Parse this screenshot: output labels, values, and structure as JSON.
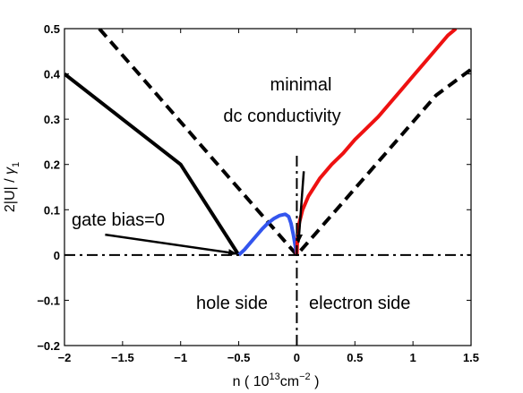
{
  "chart_data": {
    "type": "line",
    "xlabel": {
      "prefix": "n  ( 10",
      "exp": "13",
      "mid": "cm",
      "exp2": "−2",
      "suffix": " )"
    },
    "ylabel": {
      "main": "2|U| / ",
      "sym": "γ",
      "sub": "1"
    },
    "xlim": [
      -2,
      1.5
    ],
    "ylim": [
      -0.2,
      0.5
    ],
    "xticks": [
      -2,
      -1.5,
      -1,
      -0.5,
      0,
      0.5,
      1,
      1.5
    ],
    "xtick_labels": [
      "−2",
      "−1.5",
      "−1",
      "−0.5",
      "0",
      "0.5",
      "1",
      "1.5"
    ],
    "yticks": [
      -0.2,
      -0.1,
      0,
      0.1,
      0.2,
      0.3,
      0.4,
      0.5
    ],
    "ytick_labels": [
      "−0.2",
      "−0.1",
      "0",
      "0.1",
      "0.2",
      "0.3",
      "0.4",
      "0.5"
    ],
    "grid": false,
    "series": [
      {
        "color": "#000000",
        "style": "dashed",
        "x": [
          -1.7,
          -1.2,
          -0.6,
          0,
          0.6,
          1.2,
          1.5
        ],
        "y": [
          0.5,
          0.353,
          0.176,
          0,
          0.176,
          0.353,
          0.41
        ]
      },
      {
        "color": "#000000",
        "style": "solid",
        "x": [
          -2,
          -1.5,
          -1,
          -0.5
        ],
        "y": [
          0.4,
          0.3,
          0.2,
          0
        ]
      },
      {
        "color": "#3355ee",
        "style": "solid",
        "x": [
          -0.5,
          -0.45,
          -0.4,
          -0.35,
          -0.3,
          -0.25,
          -0.2,
          -0.15,
          -0.1,
          -0.07,
          -0.05,
          -0.03,
          -0.01,
          0
        ],
        "y": [
          0,
          0.012,
          0.027,
          0.042,
          0.057,
          0.07,
          0.08,
          0.087,
          0.09,
          0.085,
          0.07,
          0.045,
          0.015,
          0
        ]
      },
      {
        "color": "#ee1111",
        "style": "solid",
        "x": [
          0,
          0.005,
          0.02,
          0.05,
          0.1,
          0.2,
          0.3,
          0.4,
          0.5,
          0.6,
          0.7,
          0.8,
          0.9,
          1.0,
          1.1,
          1.2,
          1.3,
          1.37
        ],
        "y": [
          0,
          0.035,
          0.07,
          0.1,
          0.13,
          0.17,
          0.2,
          0.225,
          0.255,
          0.28,
          0.305,
          0.335,
          0.365,
          0.395,
          0.425,
          0.455,
          0.485,
          0.5
        ]
      },
      {
        "color": "#000000",
        "style": "dashdot",
        "x": [
          -2,
          1.5
        ],
        "y": [
          0,
          0
        ]
      },
      {
        "color": "#000000",
        "style": "dashdot",
        "x": [
          0,
          0
        ],
        "y": [
          -0.2,
          0.22
        ]
      }
    ],
    "annotations": {
      "minimal_1": "minimal",
      "minimal_2": "dc conductivity",
      "gate_bias": "gate bias=0",
      "hole_side": "hole side",
      "electron_side": "electron side"
    },
    "arrows": [
      {
        "from": [
          0.06,
          0.185
        ],
        "to": [
          0.015,
          0.028
        ]
      },
      {
        "from": [
          -1.65,
          0.045
        ],
        "to": [
          -0.52,
          0.003
        ]
      }
    ]
  }
}
